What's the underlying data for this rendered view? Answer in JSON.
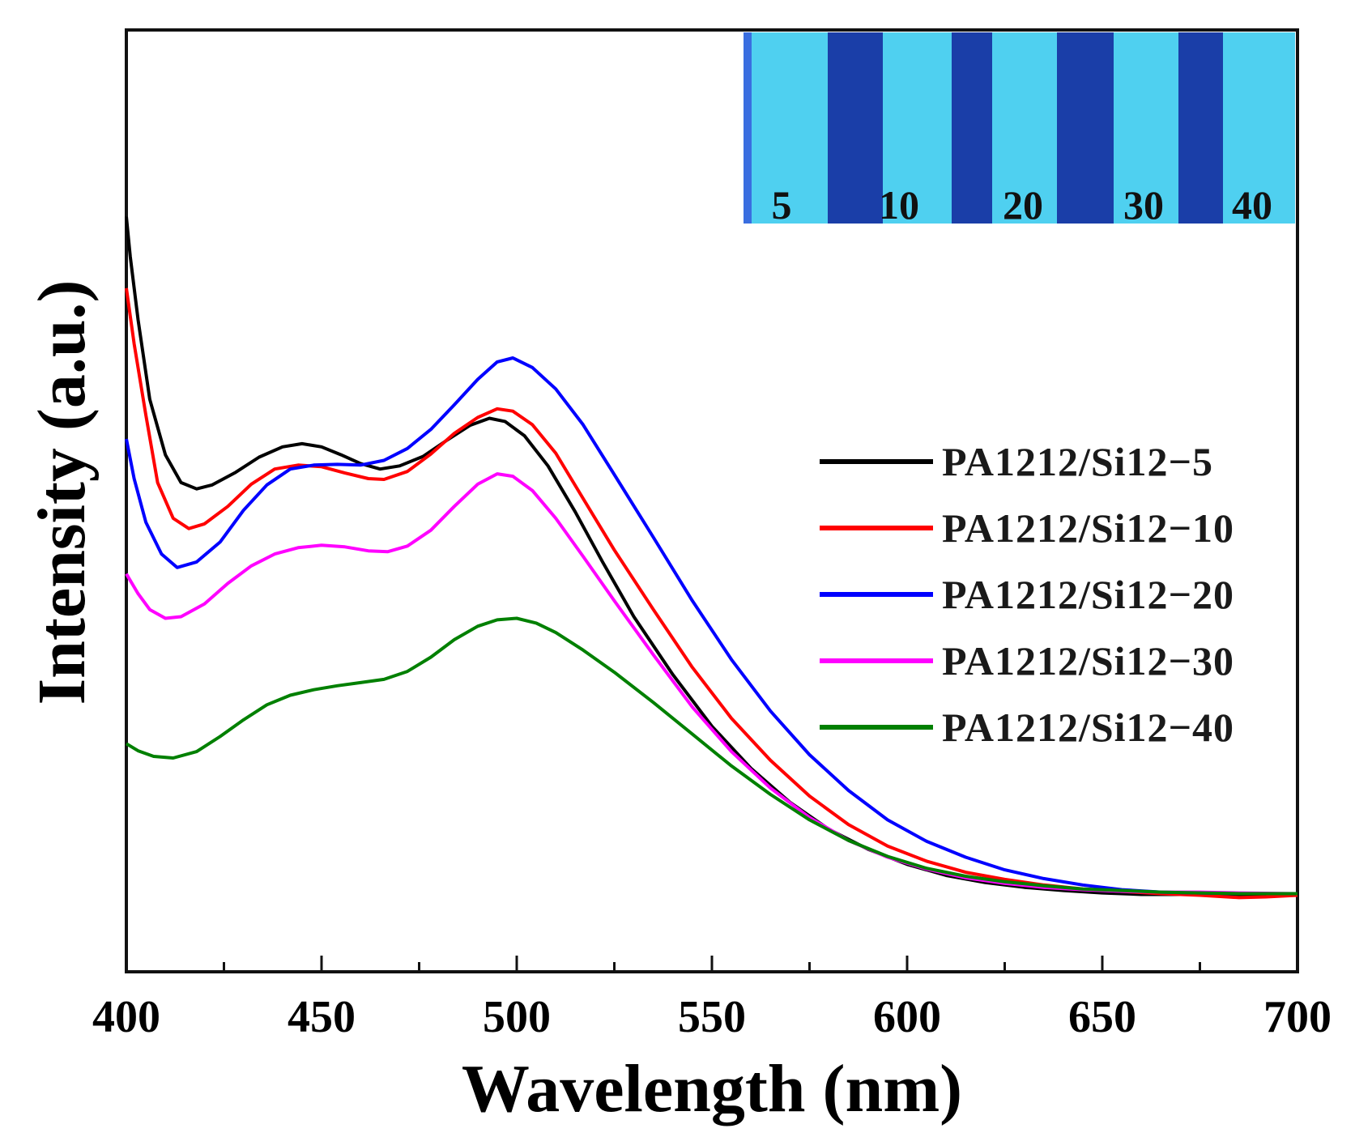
{
  "chart_data": {
    "type": "line",
    "title": "",
    "xlabel": "Wavelength (nm)",
    "ylabel": "Intensity (a.u.)",
    "xlim": [
      400,
      700
    ],
    "ylim": [
      0,
      1
    ],
    "x_ticks": [
      "400",
      "450",
      "500",
      "550",
      "600",
      "650",
      "700"
    ],
    "y_ticks": [],
    "grid": false,
    "legend_position": "right",
    "inset": {
      "description": "photo of samples under UV light",
      "labels": [
        "5",
        "10",
        "20",
        "30",
        "40"
      ],
      "colors": {
        "light": "#4fd0f0",
        "dark": "#1a3ea8",
        "edge": "#3a6ee0"
      }
    },
    "series": [
      {
        "name": "PA1212/Si12−5",
        "color": "#000000",
        "points": [
          [
            400,
            0.88
          ],
          [
            401,
            0.83
          ],
          [
            403,
            0.75
          ],
          [
            406,
            0.65
          ],
          [
            410,
            0.58
          ],
          [
            414,
            0.545
          ],
          [
            418,
            0.537
          ],
          [
            422,
            0.542
          ],
          [
            428,
            0.558
          ],
          [
            434,
            0.577
          ],
          [
            440,
            0.59
          ],
          [
            445,
            0.594
          ],
          [
            450,
            0.59
          ],
          [
            455,
            0.58
          ],
          [
            460,
            0.569
          ],
          [
            465,
            0.562
          ],
          [
            470,
            0.566
          ],
          [
            476,
            0.578
          ],
          [
            482,
            0.598
          ],
          [
            488,
            0.617
          ],
          [
            493,
            0.626
          ],
          [
            497,
            0.622
          ],
          [
            502,
            0.604
          ],
          [
            508,
            0.566
          ],
          [
            515,
            0.508
          ],
          [
            522,
            0.445
          ],
          [
            530,
            0.376
          ],
          [
            540,
            0.303
          ],
          [
            550,
            0.238
          ],
          [
            560,
            0.185
          ],
          [
            570,
            0.142
          ],
          [
            580,
            0.108
          ],
          [
            590,
            0.083
          ],
          [
            600,
            0.064
          ],
          [
            610,
            0.05
          ],
          [
            620,
            0.041
          ],
          [
            630,
            0.035
          ],
          [
            640,
            0.031
          ],
          [
            650,
            0.028
          ],
          [
            660,
            0.026
          ],
          [
            670,
            0.026
          ],
          [
            680,
            0.026
          ],
          [
            690,
            0.026
          ],
          [
            700,
            0.025
          ]
        ]
      },
      {
        "name": "PA1212/Si12−10",
        "color": "#ff0000",
        "points": [
          [
            400,
            0.79
          ],
          [
            402,
            0.72
          ],
          [
            405,
            0.63
          ],
          [
            408,
            0.545
          ],
          [
            412,
            0.5
          ],
          [
            416,
            0.487
          ],
          [
            420,
            0.493
          ],
          [
            426,
            0.515
          ],
          [
            432,
            0.543
          ],
          [
            438,
            0.562
          ],
          [
            444,
            0.567
          ],
          [
            450,
            0.565
          ],
          [
            456,
            0.557
          ],
          [
            462,
            0.55
          ],
          [
            466,
            0.549
          ],
          [
            472,
            0.559
          ],
          [
            478,
            0.581
          ],
          [
            484,
            0.607
          ],
          [
            490,
            0.627
          ],
          [
            495,
            0.638
          ],
          [
            499,
            0.635
          ],
          [
            504,
            0.618
          ],
          [
            510,
            0.582
          ],
          [
            517,
            0.525
          ],
          [
            525,
            0.46
          ],
          [
            535,
            0.385
          ],
          [
            545,
            0.312
          ],
          [
            555,
            0.248
          ],
          [
            565,
            0.195
          ],
          [
            575,
            0.15
          ],
          [
            585,
            0.114
          ],
          [
            595,
            0.087
          ],
          [
            605,
            0.068
          ],
          [
            615,
            0.054
          ],
          [
            625,
            0.045
          ],
          [
            635,
            0.038
          ],
          [
            645,
            0.033
          ],
          [
            655,
            0.03
          ],
          [
            665,
            0.027
          ],
          [
            675,
            0.025
          ],
          [
            685,
            0.022
          ],
          [
            692,
            0.023
          ],
          [
            700,
            0.025
          ]
        ]
      },
      {
        "name": "PA1212/Si12−20",
        "color": "#0000ff",
        "points": [
          [
            400,
            0.6
          ],
          [
            402,
            0.55
          ],
          [
            405,
            0.495
          ],
          [
            409,
            0.455
          ],
          [
            413,
            0.438
          ],
          [
            418,
            0.445
          ],
          [
            424,
            0.47
          ],
          [
            430,
            0.51
          ],
          [
            436,
            0.542
          ],
          [
            442,
            0.562
          ],
          [
            448,
            0.567
          ],
          [
            454,
            0.568
          ],
          [
            460,
            0.567
          ],
          [
            466,
            0.573
          ],
          [
            472,
            0.588
          ],
          [
            478,
            0.612
          ],
          [
            484,
            0.643
          ],
          [
            490,
            0.675
          ],
          [
            495,
            0.697
          ],
          [
            499,
            0.702
          ],
          [
            504,
            0.69
          ],
          [
            510,
            0.663
          ],
          [
            517,
            0.618
          ],
          [
            525,
            0.555
          ],
          [
            535,
            0.476
          ],
          [
            545,
            0.396
          ],
          [
            555,
            0.322
          ],
          [
            565,
            0.257
          ],
          [
            575,
            0.202
          ],
          [
            585,
            0.157
          ],
          [
            595,
            0.12
          ],
          [
            605,
            0.093
          ],
          [
            615,
            0.073
          ],
          [
            625,
            0.057
          ],
          [
            635,
            0.046
          ],
          [
            645,
            0.038
          ],
          [
            655,
            0.032
          ],
          [
            665,
            0.029
          ],
          [
            675,
            0.028
          ],
          [
            685,
            0.027
          ],
          [
            700,
            0.027
          ]
        ]
      },
      {
        "name": "PA1212/Si12−30",
        "color": "#ff00ff",
        "points": [
          [
            400,
            0.43
          ],
          [
            403,
            0.405
          ],
          [
            406,
            0.385
          ],
          [
            410,
            0.374
          ],
          [
            414,
            0.376
          ],
          [
            420,
            0.392
          ],
          [
            426,
            0.418
          ],
          [
            432,
            0.44
          ],
          [
            438,
            0.455
          ],
          [
            444,
            0.463
          ],
          [
            450,
            0.466
          ],
          [
            456,
            0.464
          ],
          [
            462,
            0.459
          ],
          [
            467,
            0.458
          ],
          [
            472,
            0.465
          ],
          [
            478,
            0.485
          ],
          [
            484,
            0.515
          ],
          [
            490,
            0.543
          ],
          [
            495,
            0.556
          ],
          [
            499,
            0.553
          ],
          [
            504,
            0.535
          ],
          [
            510,
            0.5
          ],
          [
            517,
            0.452
          ],
          [
            525,
            0.396
          ],
          [
            535,
            0.328
          ],
          [
            545,
            0.262
          ],
          [
            555,
            0.206
          ],
          [
            565,
            0.16
          ],
          [
            575,
            0.123
          ],
          [
            585,
            0.094
          ],
          [
            595,
            0.073
          ],
          [
            605,
            0.058
          ],
          [
            615,
            0.047
          ],
          [
            625,
            0.04
          ],
          [
            635,
            0.035
          ],
          [
            645,
            0.032
          ],
          [
            655,
            0.03
          ],
          [
            665,
            0.029
          ],
          [
            675,
            0.029
          ],
          [
            685,
            0.028
          ],
          [
            700,
            0.027
          ]
        ]
      },
      {
        "name": "PA1212/Si12−40",
        "color": "#008000",
        "points": [
          [
            400,
            0.216
          ],
          [
            403,
            0.207
          ],
          [
            407,
            0.2
          ],
          [
            412,
            0.198
          ],
          [
            418,
            0.206
          ],
          [
            424,
            0.225
          ],
          [
            430,
            0.246
          ],
          [
            436,
            0.265
          ],
          [
            442,
            0.277
          ],
          [
            448,
            0.284
          ],
          [
            454,
            0.289
          ],
          [
            460,
            0.293
          ],
          [
            466,
            0.297
          ],
          [
            472,
            0.307
          ],
          [
            478,
            0.325
          ],
          [
            484,
            0.347
          ],
          [
            490,
            0.364
          ],
          [
            495,
            0.372
          ],
          [
            500,
            0.374
          ],
          [
            505,
            0.368
          ],
          [
            510,
            0.356
          ],
          [
            517,
            0.334
          ],
          [
            525,
            0.306
          ],
          [
            535,
            0.268
          ],
          [
            545,
            0.228
          ],
          [
            555,
            0.188
          ],
          [
            565,
            0.152
          ],
          [
            575,
            0.12
          ],
          [
            585,
            0.094
          ],
          [
            595,
            0.074
          ],
          [
            605,
            0.059
          ],
          [
            615,
            0.049
          ],
          [
            625,
            0.042
          ],
          [
            635,
            0.037
          ],
          [
            645,
            0.033
          ],
          [
            655,
            0.031
          ],
          [
            665,
            0.029
          ],
          [
            675,
            0.028
          ],
          [
            685,
            0.027
          ],
          [
            700,
            0.027
          ]
        ]
      }
    ]
  }
}
